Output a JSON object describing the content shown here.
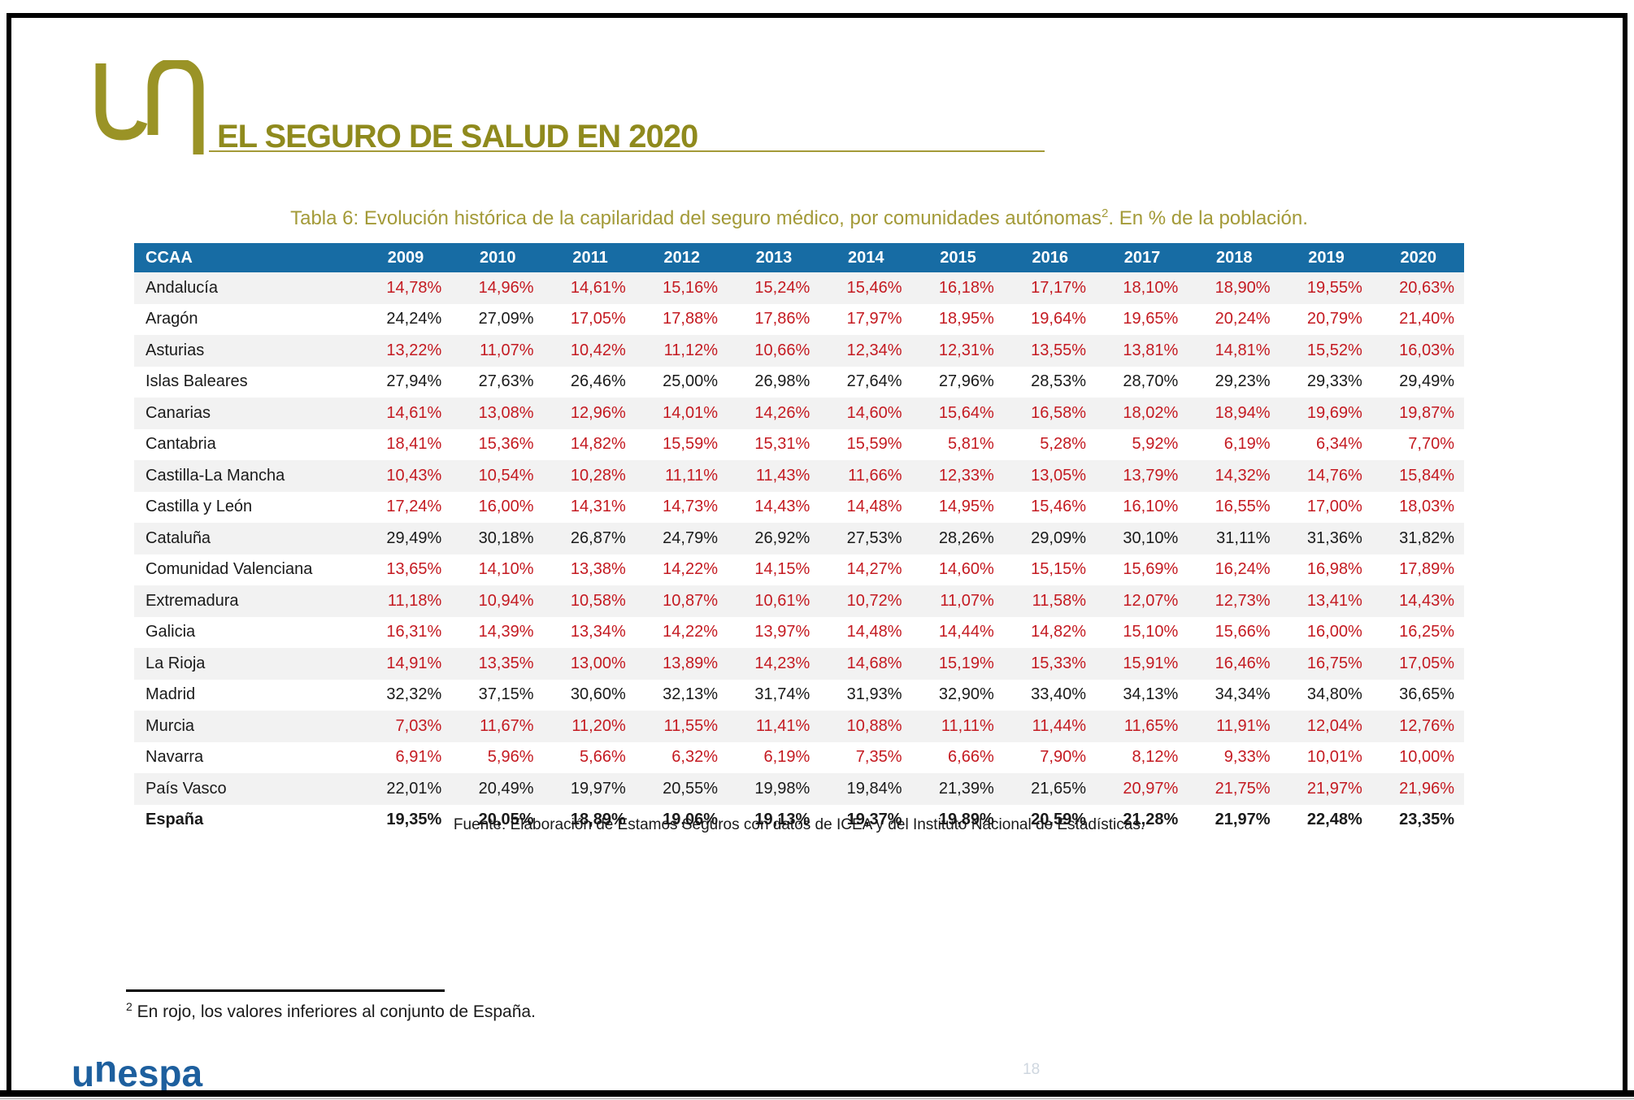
{
  "header": {
    "title": "EL SEGURO DE SALUD EN 2020"
  },
  "table_title": {
    "prefix": "Tabla 6: Evolución histórica de la capilaridad del seguro médico, por comunidades autónomas",
    "sup": "2",
    "suffix": ". En % de la población."
  },
  "table": {
    "columns": [
      "CCAA",
      "2009",
      "2010",
      "2011",
      "2012",
      "2013",
      "2014",
      "2015",
      "2016",
      "2017",
      "2018",
      "2019",
      "2020"
    ],
    "rows": [
      {
        "name": "Andalucía",
        "bold": false,
        "values": [
          "14,78%",
          "14,96%",
          "14,61%",
          "15,16%",
          "15,24%",
          "15,46%",
          "16,18%",
          "17,17%",
          "18,10%",
          "18,90%",
          "19,55%",
          "20,63%"
        ]
      },
      {
        "name": "Aragón",
        "bold": false,
        "values": [
          "24,24%",
          "27,09%",
          "17,05%",
          "17,88%",
          "17,86%",
          "17,97%",
          "18,95%",
          "19,64%",
          "19,65%",
          "20,24%",
          "20,79%",
          "21,40%"
        ]
      },
      {
        "name": "Asturias",
        "bold": false,
        "values": [
          "13,22%",
          "11,07%",
          "10,42%",
          "11,12%",
          "10,66%",
          "12,34%",
          "12,31%",
          "13,55%",
          "13,81%",
          "14,81%",
          "15,52%",
          "16,03%"
        ]
      },
      {
        "name": "Islas Baleares",
        "bold": false,
        "values": [
          "27,94%",
          "27,63%",
          "26,46%",
          "25,00%",
          "26,98%",
          "27,64%",
          "27,96%",
          "28,53%",
          "28,70%",
          "29,23%",
          "29,33%",
          "29,49%"
        ]
      },
      {
        "name": "Canarias",
        "bold": false,
        "values": [
          "14,61%",
          "13,08%",
          "12,96%",
          "14,01%",
          "14,26%",
          "14,60%",
          "15,64%",
          "16,58%",
          "18,02%",
          "18,94%",
          "19,69%",
          "19,87%"
        ]
      },
      {
        "name": "Cantabria",
        "bold": false,
        "values": [
          "18,41%",
          "15,36%",
          "14,82%",
          "15,59%",
          "15,31%",
          "15,59%",
          "5,81%",
          "5,28%",
          "5,92%",
          "6,19%",
          "6,34%",
          "7,70%"
        ]
      },
      {
        "name": "Castilla-La Mancha",
        "bold": false,
        "values": [
          "10,43%",
          "10,54%",
          "10,28%",
          "11,11%",
          "11,43%",
          "11,66%",
          "12,33%",
          "13,05%",
          "13,79%",
          "14,32%",
          "14,76%",
          "15,84%"
        ]
      },
      {
        "name": "Castilla y León",
        "bold": false,
        "values": [
          "17,24%",
          "16,00%",
          "14,31%",
          "14,73%",
          "14,43%",
          "14,48%",
          "14,95%",
          "15,46%",
          "16,10%",
          "16,55%",
          "17,00%",
          "18,03%"
        ]
      },
      {
        "name": "Cataluña",
        "bold": false,
        "values": [
          "29,49%",
          "30,18%",
          "26,87%",
          "24,79%",
          "26,92%",
          "27,53%",
          "28,26%",
          "29,09%",
          "30,10%",
          "31,11%",
          "31,36%",
          "31,82%"
        ]
      },
      {
        "name": "Comunidad Valenciana",
        "bold": false,
        "values": [
          "13,65%",
          "14,10%",
          "13,38%",
          "14,22%",
          "14,15%",
          "14,27%",
          "14,60%",
          "15,15%",
          "15,69%",
          "16,24%",
          "16,98%",
          "17,89%"
        ]
      },
      {
        "name": "Extremadura",
        "bold": false,
        "values": [
          "11,18%",
          "10,94%",
          "10,58%",
          "10,87%",
          "10,61%",
          "10,72%",
          "11,07%",
          "11,58%",
          "12,07%",
          "12,73%",
          "13,41%",
          "14,43%"
        ]
      },
      {
        "name": "Galicia",
        "bold": false,
        "values": [
          "16,31%",
          "14,39%",
          "13,34%",
          "14,22%",
          "13,97%",
          "14,48%",
          "14,44%",
          "14,82%",
          "15,10%",
          "15,66%",
          "16,00%",
          "16,25%"
        ]
      },
      {
        "name": "La Rioja",
        "bold": false,
        "values": [
          "14,91%",
          "13,35%",
          "13,00%",
          "13,89%",
          "14,23%",
          "14,68%",
          "15,19%",
          "15,33%",
          "15,91%",
          "16,46%",
          "16,75%",
          "17,05%"
        ]
      },
      {
        "name": "Madrid",
        "bold": false,
        "values": [
          "32,32%",
          "37,15%",
          "30,60%",
          "32,13%",
          "31,74%",
          "31,93%",
          "32,90%",
          "33,40%",
          "34,13%",
          "34,34%",
          "34,80%",
          "36,65%"
        ]
      },
      {
        "name": "Murcia",
        "bold": false,
        "values": [
          "7,03%",
          "11,67%",
          "11,20%",
          "11,55%",
          "11,41%",
          "10,88%",
          "11,11%",
          "11,44%",
          "11,65%",
          "11,91%",
          "12,04%",
          "12,76%"
        ]
      },
      {
        "name": "Navarra",
        "bold": false,
        "values": [
          "6,91%",
          "5,96%",
          "5,66%",
          "6,32%",
          "6,19%",
          "7,35%",
          "6,66%",
          "7,90%",
          "8,12%",
          "9,33%",
          "10,01%",
          "10,00%"
        ]
      },
      {
        "name": "País Vasco",
        "bold": false,
        "values": [
          "22,01%",
          "20,49%",
          "19,97%",
          "20,55%",
          "19,98%",
          "19,84%",
          "21,39%",
          "21,65%",
          "20,97%",
          "21,75%",
          "21,97%",
          "21,96%"
        ]
      },
      {
        "name": "España",
        "bold": true,
        "values": [
          "19,35%",
          "20,05%",
          "18,89%",
          "19,06%",
          "19,13%",
          "19,37%",
          "19,89%",
          "20,59%",
          "21,28%",
          "21,97%",
          "22,48%",
          "23,35%"
        ]
      }
    ]
  },
  "source": "Fuente: Elaboración de Estamos Seguros con datos de ICEA y del Instituto Nacional de Estadísticas.",
  "footnote": {
    "sup": "2",
    "text": " En rojo, los valores inferiores al conjunto de España."
  },
  "logo_text": "unespa",
  "page_number": "18",
  "colors": {
    "header_bg": "#176CA4",
    "red": "#C41A21",
    "olive_dark": "#8F8A1D",
    "olive_light": "#A39A38",
    "logo_blue": "#1D5F9E"
  }
}
